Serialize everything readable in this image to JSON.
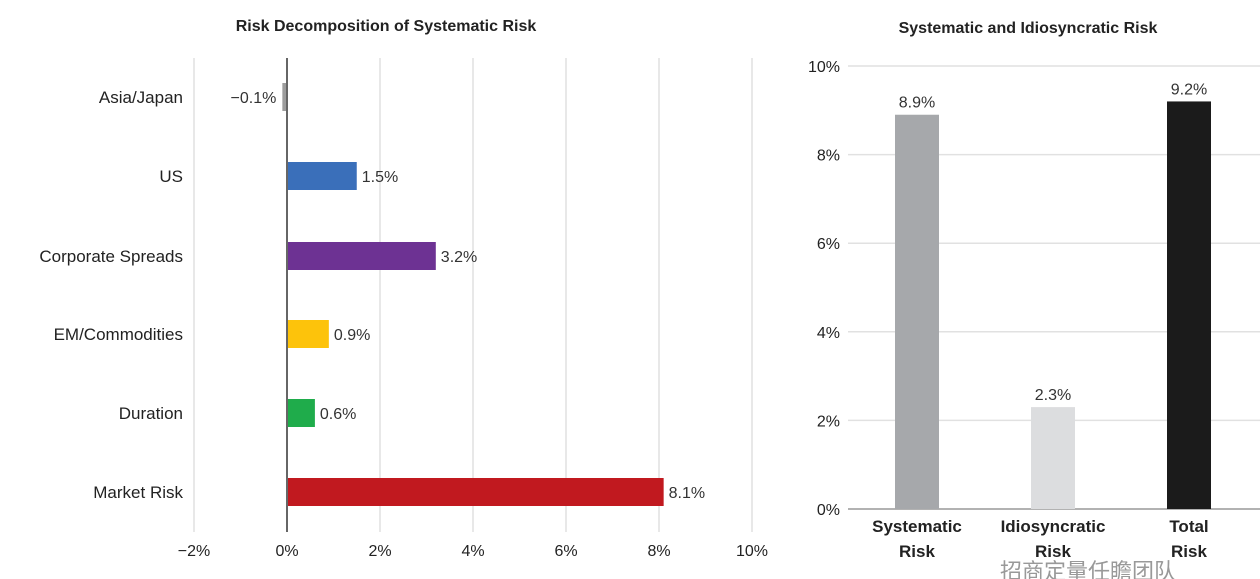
{
  "chart_data": [
    {
      "type": "bar",
      "orientation": "horizontal",
      "title": "Risk Decomposition of Systematic Risk",
      "categories": [
        "Asia/Japan",
        "US",
        "Corporate Spreads",
        "EM/Commodities",
        "Duration",
        "Market Risk"
      ],
      "values": [
        -0.1,
        1.5,
        3.2,
        0.9,
        0.6,
        8.1
      ],
      "data_labels": [
        "−0.1%",
        "1.5%",
        "3.2%",
        "0.9%",
        "0.6%",
        "8.1%"
      ],
      "colors": [
        "#9d9d9d",
        "#3a6fba",
        "#6d3293",
        "#fdc30b",
        "#1fac4b",
        "#c1191f"
      ],
      "xlim": [
        -2,
        10
      ],
      "xticks": [
        -2,
        0,
        2,
        4,
        6,
        8,
        10
      ],
      "xtick_labels": [
        "−2%",
        "0%",
        "2%",
        "4%",
        "6%",
        "8%",
        "10%"
      ],
      "grid": true
    },
    {
      "type": "bar",
      "orientation": "vertical",
      "title": "Systematic and Idiosyncratic Risk",
      "categories": [
        [
          "Systematic",
          "Risk"
        ],
        [
          "Idiosyncratic",
          "Risk"
        ],
        [
          "Total",
          "Risk"
        ]
      ],
      "values": [
        8.9,
        2.3,
        9.2
      ],
      "data_labels": [
        "8.9%",
        "2.3%",
        "9.2%"
      ],
      "colors": [
        "#a6a8ab",
        "#dcdddf",
        "#1b1b1b"
      ],
      "ylim": [
        0,
        10
      ],
      "yticks": [
        0,
        2,
        4,
        6,
        8,
        10
      ],
      "ytick_labels": [
        "0%",
        "2%",
        "4%",
        "6%",
        "8%",
        "10%"
      ],
      "grid": true
    }
  ],
  "watermark": "招商定量任瞻团队"
}
